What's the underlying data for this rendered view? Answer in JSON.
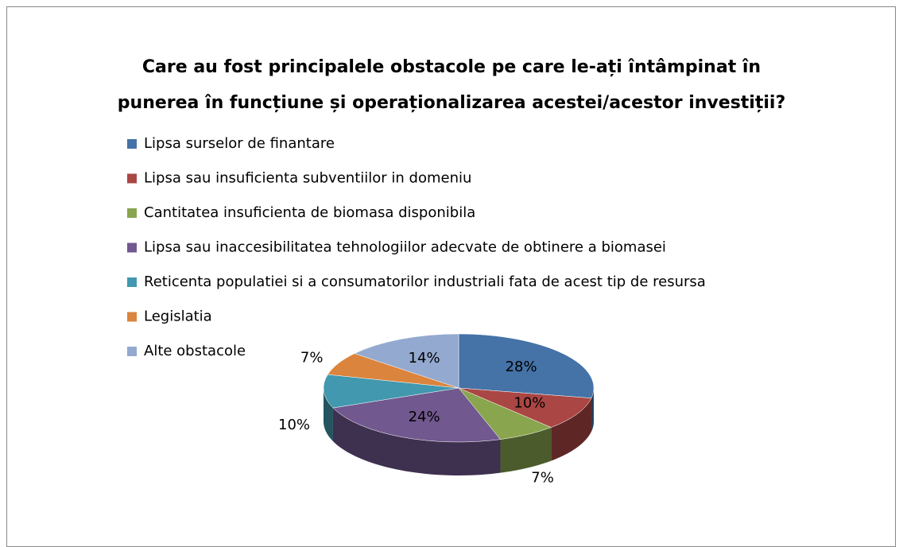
{
  "chart_data": {
    "type": "pie",
    "title": "Care au fost principalele obstacole pe care le-ați întâmpinat în punerea în funcțiune și operaționalizarea acestei/acestor investiții?",
    "categories": [
      "Lipsa surselor de finantare",
      "Lipsa sau insuficienta subventiilor in domeniu",
      "Cantitatea insuficienta de biomasa disponibila",
      "Lipsa sau inaccesibilitatea tehnologiilor adecvate de obtinere a biomasei",
      "Reticenta populatiei si a consumatorilor industriali fata de acest tip de resursa",
      "Legislatia",
      "Alte obstacole"
    ],
    "values": [
      28,
      10,
      7,
      24,
      10,
      7,
      14
    ],
    "value_labels": [
      "28%",
      "10%",
      "7%",
      "24%",
      "10%",
      "7%",
      "14%"
    ],
    "colors": [
      "#4572a7",
      "#aa4643",
      "#89a54e",
      "#71588f",
      "#4198af",
      "#db843d",
      "#93a9cf"
    ],
    "legend": "left"
  }
}
